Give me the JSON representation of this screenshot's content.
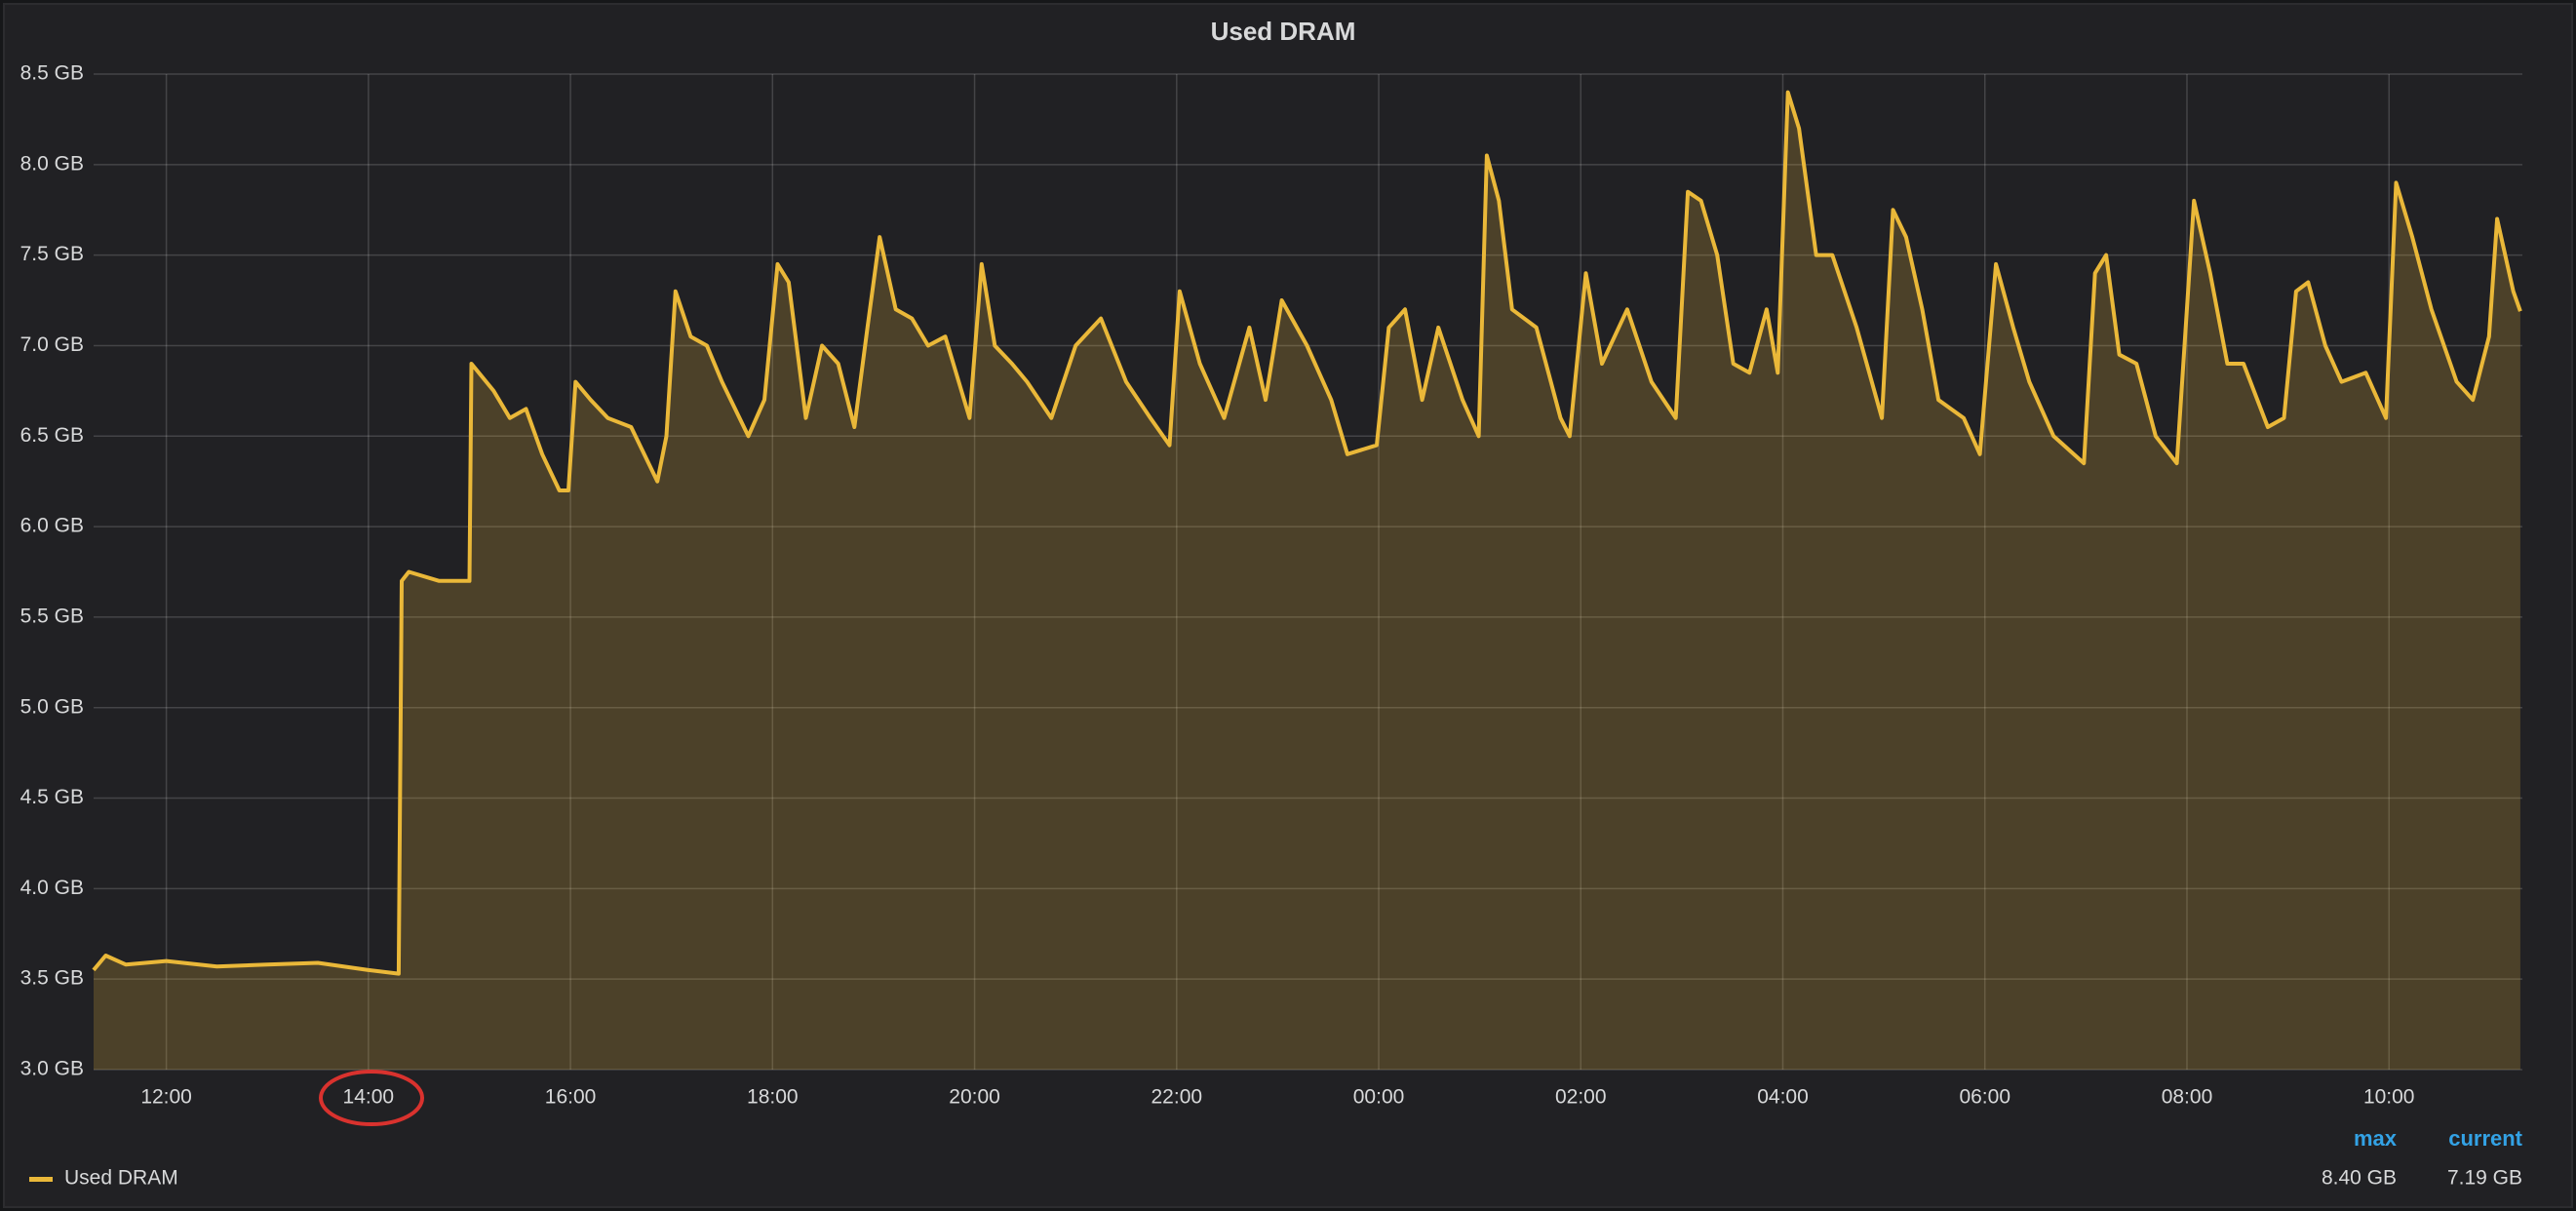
{
  "chart_data": {
    "type": "area",
    "title": "Used DRAM",
    "x": [
      11.28,
      11.4,
      11.6,
      12.0,
      12.5,
      13.0,
      13.5,
      14.0,
      14.3,
      14.33,
      14.4,
      14.7,
      15.0,
      15.02,
      15.24,
      15.4,
      15.56,
      15.72,
      15.89,
      15.98,
      16.05,
      16.2,
      16.37,
      16.6,
      16.86,
      16.95,
      17.04,
      17.19,
      17.35,
      17.5,
      17.76,
      17.92,
      18.05,
      18.16,
      18.33,
      18.49,
      18.65,
      18.81,
      18.94,
      19.06,
      19.22,
      19.38,
      19.54,
      19.71,
      19.95,
      20.07,
      20.2,
      20.37,
      20.52,
      20.76,
      21.0,
      21.25,
      21.5,
      21.74,
      21.93,
      22.03,
      22.23,
      22.47,
      22.72,
      22.88,
      23.04,
      23.29,
      23.53,
      23.69,
      23.98,
      24.1,
      24.26,
      24.43,
      24.59,
      24.83,
      24.99,
      25.07,
      25.19,
      25.32,
      25.56,
      25.8,
      25.89,
      26.05,
      26.21,
      26.46,
      26.7,
      26.94,
      27.06,
      27.19,
      27.35,
      27.51,
      27.67,
      27.84,
      27.95,
      28.05,
      28.16,
      28.33,
      28.49,
      28.73,
      28.98,
      29.09,
      29.22,
      29.38,
      29.54,
      29.79,
      29.95,
      30.11,
      30.28,
      30.44,
      30.68,
      30.98,
      31.09,
      31.2,
      31.33,
      31.5,
      31.69,
      31.9,
      32.07,
      32.23,
      32.4,
      32.56,
      32.8,
      32.96,
      33.08,
      33.2,
      33.37,
      33.53,
      33.77,
      33.97,
      34.07,
      34.23,
      34.42,
      34.67,
      34.83,
      34.99,
      35.07,
      35.23,
      35.3
    ],
    "series": [
      {
        "name": "Used DRAM",
        "color": "#eab839",
        "values": [
          3.55,
          3.63,
          3.58,
          3.6,
          3.57,
          3.58,
          3.59,
          3.55,
          3.53,
          5.7,
          5.75,
          5.7,
          5.7,
          6.9,
          6.75,
          6.6,
          6.65,
          6.4,
          6.2,
          6.2,
          6.8,
          6.7,
          6.6,
          6.55,
          6.25,
          6.5,
          7.3,
          7.05,
          7.0,
          6.8,
          6.5,
          6.7,
          7.45,
          7.35,
          6.6,
          7.0,
          6.9,
          6.55,
          7.1,
          7.6,
          7.2,
          7.15,
          7.0,
          7.05,
          6.6,
          7.45,
          7.0,
          6.9,
          6.8,
          6.6,
          7.0,
          7.15,
          6.8,
          6.6,
          6.45,
          7.3,
          6.9,
          6.6,
          7.1,
          6.7,
          7.25,
          7.0,
          6.7,
          6.4,
          6.45,
          7.1,
          7.2,
          6.7,
          7.1,
          6.7,
          6.5,
          8.05,
          7.8,
          7.2,
          7.1,
          6.6,
          6.5,
          7.4,
          6.9,
          7.2,
          6.8,
          6.6,
          7.85,
          7.8,
          7.5,
          6.9,
          6.85,
          7.2,
          6.85,
          8.4,
          8.2,
          7.5,
          7.5,
          7.1,
          6.6,
          7.75,
          7.6,
          7.2,
          6.7,
          6.6,
          6.4,
          7.45,
          7.1,
          6.8,
          6.5,
          6.35,
          7.4,
          7.5,
          6.95,
          6.9,
          6.5,
          6.35,
          7.8,
          7.4,
          6.9,
          6.9,
          6.55,
          6.6,
          7.3,
          7.35,
          7.0,
          6.8,
          6.85,
          6.6,
          7.9,
          7.6,
          7.2,
          6.8,
          6.7,
          7.05,
          7.7,
          7.3,
          7.19
        ]
      }
    ],
    "xlim": [
      11.28,
      35.32
    ],
    "xticks": [
      {
        "value": 12,
        "label": "12:00"
      },
      {
        "value": 14,
        "label": "14:00"
      },
      {
        "value": 16,
        "label": "16:00"
      },
      {
        "value": 18,
        "label": "18:00"
      },
      {
        "value": 20,
        "label": "20:00"
      },
      {
        "value": 22,
        "label": "22:00"
      },
      {
        "value": 24,
        "label": "00:00"
      },
      {
        "value": 26,
        "label": "02:00"
      },
      {
        "value": 28,
        "label": "04:00"
      },
      {
        "value": 30,
        "label": "06:00"
      },
      {
        "value": 32,
        "label": "08:00"
      },
      {
        "value": 34,
        "label": "10:00"
      }
    ],
    "ylim": [
      3.0,
      8.5
    ],
    "yticks": [
      {
        "value": 3.0,
        "label": "3.0 GB"
      },
      {
        "value": 3.5,
        "label": "3.5 GB"
      },
      {
        "value": 4.0,
        "label": "4.0 GB"
      },
      {
        "value": 4.5,
        "label": "4.5 GB"
      },
      {
        "value": 5.0,
        "label": "5.0 GB"
      },
      {
        "value": 5.5,
        "label": "5.5 GB"
      },
      {
        "value": 6.0,
        "label": "6.0 GB"
      },
      {
        "value": 6.5,
        "label": "6.5 GB"
      },
      {
        "value": 7.0,
        "label": "7.0 GB"
      },
      {
        "value": 7.5,
        "label": "7.5 GB"
      },
      {
        "value": 8.0,
        "label": "8.0 GB"
      },
      {
        "value": 8.5,
        "label": "8.5 GB"
      }
    ],
    "grid": true,
    "legend_stats": [
      {
        "name": "max",
        "value": 8.4,
        "label": "8.40 GB"
      },
      {
        "name": "current",
        "value": 7.19,
        "label": "7.19 GB"
      }
    ]
  }
}
